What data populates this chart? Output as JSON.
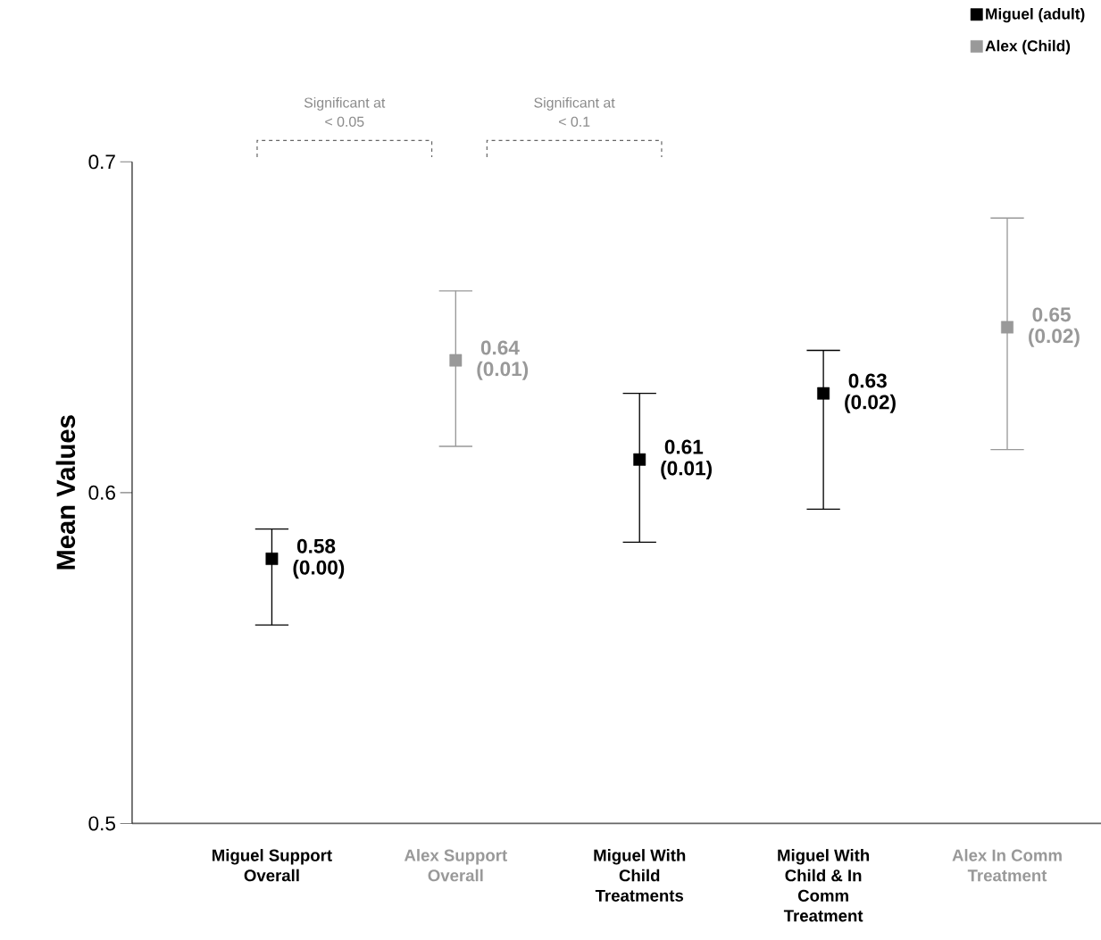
{
  "chart_data": {
    "type": "scatter",
    "ylabel": "Mean Values",
    "categories": [
      "Miguel Support Overall",
      "Alex Support Overall",
      "Miguel With Child Treatments",
      "Miguel With Child & In Comm Treatment",
      "Alex In Comm Treatment"
    ],
    "ylim": [
      0.5,
      0.7
    ],
    "yticks": [
      0.5,
      0.6,
      0.7
    ],
    "marker": "square",
    "legend": "top right",
    "annotations": [
      "Significant at < 0.05",
      "Significant at < 0.1"
    ],
    "series": [
      {
        "name": "Miguel (adult)",
        "color": "#000000",
        "values": [
          0.58,
          null,
          0.61,
          0.63,
          null
        ],
        "errors": [
          [
            0.56,
            0.589
          ],
          null,
          [
            0.585,
            0.63
          ],
          [
            0.595,
            0.643
          ],
          null
        ],
        "value_labels": [
          "0.58 (0.00)",
          null,
          "0.61 (0.01)",
          "0.63 (0.02)",
          null
        ]
      },
      {
        "name": "Alex (Child)",
        "color": "#999999",
        "values": [
          null,
          0.64,
          null,
          null,
          0.65
        ],
        "errors": [
          null,
          [
            0.614,
            0.661
          ],
          null,
          null,
          [
            0.613,
            0.683
          ]
        ],
        "value_labels": [
          null,
          "0.64 (0.01)",
          null,
          null,
          "0.65 (0.02)"
        ]
      }
    ]
  }
}
